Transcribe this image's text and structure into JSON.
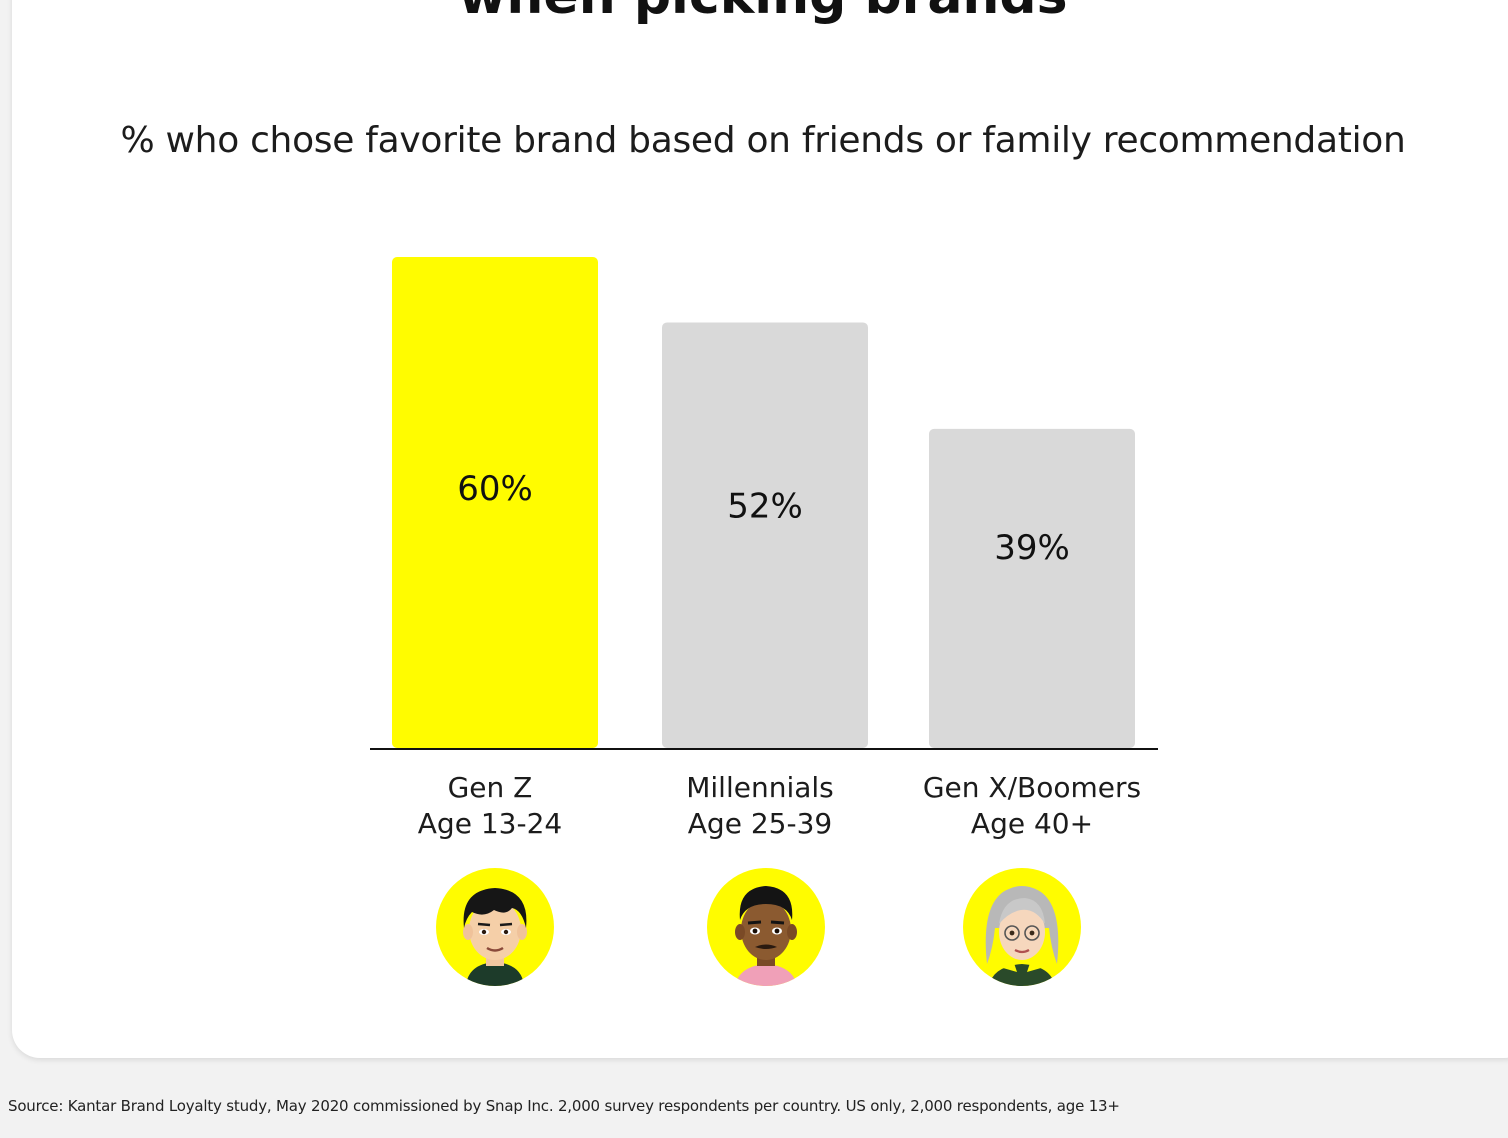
{
  "title": "when picking brands",
  "subtitle": "% who chose favorite brand based on friends or family recommendation",
  "source": "Source: Kantar Brand Loyalty study, May 2020 commissioned by Snap Inc. 2,000 survey respondents per country. US only, 2,000 respondents, age 13+",
  "colors": {
    "highlight": "#fffc00",
    "bar": "#d9d9d9",
    "axis": "#111111",
    "avatar_bg": "#fffc00"
  },
  "avatars": [
    {
      "name": "gen-z-avatar-icon"
    },
    {
      "name": "millennial-avatar-icon"
    },
    {
      "name": "gen-x-boomer-avatar-icon"
    }
  ],
  "chart_data": {
    "type": "bar",
    "title": "when picking brands",
    "subtitle": "% who chose favorite brand based on friends or family recommendation",
    "categories": [
      {
        "line1": "Gen Z",
        "line2": "Age 13-24"
      },
      {
        "line1": "Millennials",
        "line2": "Age 25-39"
      },
      {
        "line1": "Gen X/Boomers",
        "line2": "Age 40+"
      }
    ],
    "values": [
      60,
      52,
      39
    ],
    "value_labels": [
      "60%",
      "52%",
      "39%"
    ],
    "highlight_index": 0,
    "ylim": [
      0,
      60
    ],
    "grid": false,
    "legend": "none",
    "xlabel": "",
    "ylabel": ""
  }
}
